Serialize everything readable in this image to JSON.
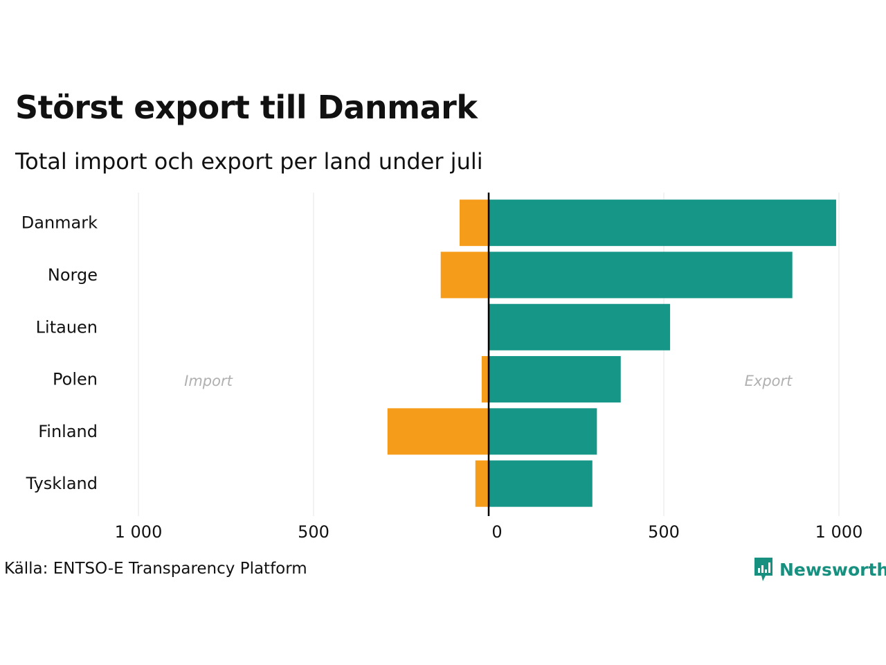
{
  "title": "Störst export till Danmark",
  "subtitle": "Total import och export per land under juli",
  "source": "Källa: ENTSO-E Transparency Platform",
  "logo_text": "Newsworthy",
  "colors": {
    "import": "#f59d1b",
    "export": "#159687",
    "grid": "#e6e6e6",
    "axis": "#000000",
    "annotation": "#b0b0b0",
    "brand": "#17907f"
  },
  "chart_data": {
    "type": "bar",
    "orientation": "horizontal-diverging",
    "categories": [
      "Danmark",
      "Norge",
      "Litauen",
      "Polen",
      "Finland",
      "Tyskland"
    ],
    "series": [
      {
        "name": "Import",
        "values": [
          83,
          137,
          0,
          20,
          289,
          38
        ]
      },
      {
        "name": "Export",
        "values": [
          992,
          867,
          518,
          377,
          309,
          296
        ]
      }
    ],
    "xlim": [
      -1000,
      1000
    ],
    "x_ticks": [
      -1000,
      -500,
      0,
      500,
      1000
    ],
    "x_tick_labels": [
      "1 000",
      "500",
      "0",
      "500",
      "1 000"
    ],
    "annotations": {
      "left": "Import",
      "right": "Export"
    },
    "grid": true
  }
}
